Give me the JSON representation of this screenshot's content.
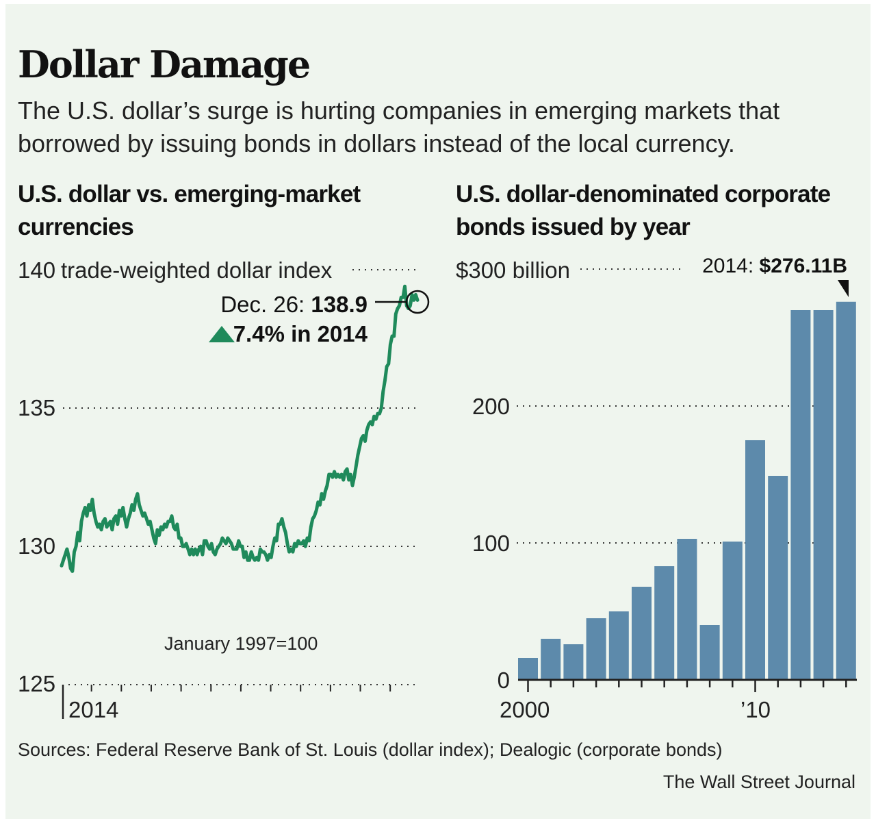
{
  "header": {
    "title": "Dollar Damage",
    "subtitle": "The U.S. dollar’s surge is hurting companies in emerging markets that borrowed by issuing bonds in dollars instead of the local currency."
  },
  "footer": {
    "sources": "Sources: Federal Reserve Bank of St. Louis (dollar index); Dealogic (corporate bonds)",
    "credit": "The Wall Street Journal"
  },
  "colors": {
    "background": "#eff5ee",
    "line": "#1f8a5b",
    "bars": "#5d8aab",
    "text": "#1a1a1a"
  },
  "chart_data": [
    {
      "type": "line",
      "title": "U.S. dollar vs. emerging-market currencies",
      "ylabel": "trade-weighted dollar index",
      "ylim": [
        125,
        140
      ],
      "yticks": [
        "125",
        "130",
        "135",
        "140"
      ],
      "xlabel_tick": "2014",
      "base_note": "January 1997=100",
      "grid": true,
      "annotation": {
        "date_text": "Dec. 26: ",
        "value_text": "138.9",
        "change_icon": "up-triangle-icon",
        "change_text": "7.4% in 2014"
      },
      "series": [
        {
          "values": [
            129.3,
            129.5,
            129.7,
            129.9,
            129.6,
            129.2,
            129.1,
            129.8,
            130.0,
            130.5,
            130.2,
            130.9,
            131.2,
            131.4,
            131.1,
            131.5,
            131.3,
            131.7,
            131.2,
            130.9,
            130.7,
            130.8,
            130.6,
            130.9,
            131.0,
            130.7,
            130.8,
            130.9,
            130.6,
            131.0,
            131.1,
            130.8,
            131.3,
            131.1,
            131.4,
            131.0,
            130.7,
            131.0,
            131.2,
            131.5,
            131.3,
            131.7,
            131.9,
            131.5,
            131.3,
            131.1,
            131.2,
            131.0,
            130.8,
            130.9,
            130.6,
            130.3,
            130.1,
            130.6,
            130.4,
            130.7,
            130.6,
            130.8,
            130.7,
            130.9,
            130.9,
            131.1,
            130.7,
            130.6,
            130.8,
            130.3,
            130.3,
            130.0,
            130.0,
            130.1,
            129.9,
            129.7,
            129.9,
            129.7,
            129.9,
            129.7,
            129.9,
            130.0,
            129.7,
            130.2,
            130.2,
            130.0,
            129.9,
            130.1,
            129.8,
            129.7,
            129.9,
            130.0,
            130.1,
            130.3,
            130.2,
            130.1,
            130.3,
            130.2,
            130.1,
            129.9,
            129.9,
            129.9,
            130.2,
            130.0,
            130.0,
            129.6,
            129.8,
            129.5,
            129.5,
            129.8,
            129.6,
            129.5,
            129.6,
            129.5,
            129.9,
            129.8,
            129.8,
            129.7,
            129.5,
            129.7,
            129.6,
            130.0,
            130.3,
            130.2,
            130.8,
            130.8,
            131.0,
            130.7,
            130.5,
            130.1,
            129.8,
            129.9,
            129.8,
            130.1,
            130.0,
            130.2,
            130.1,
            130.1,
            130.2,
            130.0,
            130.3,
            130.2,
            130.7,
            131.0,
            131.1,
            131.3,
            131.6,
            131.5,
            131.9,
            131.7,
            132.0,
            132.2,
            132.6,
            132.6,
            132.5,
            132.7,
            132.5,
            132.6,
            132.5,
            132.6,
            132.4,
            132.7,
            132.8,
            132.4,
            132.6,
            132.2,
            132.5,
            132.9,
            133.3,
            133.6,
            133.9,
            134.0,
            133.8,
            134.2,
            134.4,
            134.5,
            134.4,
            134.7,
            134.6,
            134.8,
            134.8,
            135.0,
            135.6,
            136.0,
            136.5,
            136.6,
            137.3,
            137.6,
            137.6,
            138.4,
            138.6,
            138.7,
            139.0,
            139.0,
            139.4,
            138.7,
            138.6,
            138.7,
            139.1,
            138.9,
            139.1,
            138.9
          ]
        }
      ]
    },
    {
      "type": "bar",
      "title": "U.S. dollar-denominated corporate bonds issued by year",
      "ylabel": "billion",
      "ylim": [
        0,
        300
      ],
      "yticks": [
        "0",
        "100",
        "200",
        "$300"
      ],
      "x": [
        2000,
        2001,
        2002,
        2003,
        2004,
        2005,
        2006,
        2007,
        2008,
        2009,
        2010,
        2011,
        2012,
        2013,
        2014
      ],
      "xtick_labels": [
        "2000",
        "’10"
      ],
      "values": [
        16,
        30,
        26,
        45,
        50,
        68,
        83,
        103,
        40,
        101,
        175,
        149,
        270,
        270,
        276.11
      ],
      "grid": true,
      "annotation": {
        "year_text": "2014: ",
        "value_text": "$276.11B",
        "marker_icon": "down-triangle-pointer-icon"
      }
    }
  ]
}
